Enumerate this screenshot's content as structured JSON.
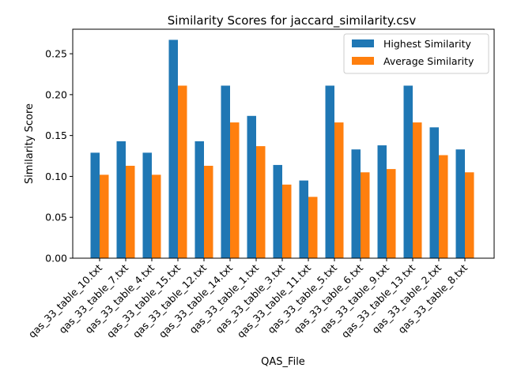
{
  "chart_data": {
    "type": "bar",
    "title": "Similarity Scores for jaccard_similarity.csv",
    "xlabel": "QAS_File",
    "ylabel": "Similarity Score",
    "ylim": [
      0,
      0.28
    ],
    "yticks": [
      "0.00",
      "0.05",
      "0.10",
      "0.15",
      "0.20",
      "0.25"
    ],
    "grid": false,
    "legend_position": "top-right",
    "categories": [
      "qas_33_table_10.txt",
      "qas_33_table_7.txt",
      "qas_33_table_4.txt",
      "qas_33_table_15.txt",
      "qas_33_table_12.txt",
      "qas_33_table_14.txt",
      "qas_33_table_1.txt",
      "qas_33_table_3.txt",
      "qas_33_table_11.txt",
      "qas_33_table_5.txt",
      "qas_33_table_6.txt",
      "qas_33_table_9.txt",
      "qas_33_table_13.txt",
      "qas_33_table_2.txt",
      "qas_33_table_8.txt"
    ],
    "series": [
      {
        "name": "Highest Similarity",
        "color": "#1f77b4",
        "values": [
          0.129,
          0.143,
          0.129,
          0.267,
          0.143,
          0.211,
          0.174,
          0.114,
          0.095,
          0.211,
          0.133,
          0.138,
          0.211,
          0.16,
          0.133
        ]
      },
      {
        "name": "Average Similarity",
        "color": "#ff7f0e",
        "values": [
          0.102,
          0.113,
          0.102,
          0.211,
          0.113,
          0.166,
          0.137,
          0.09,
          0.075,
          0.166,
          0.105,
          0.109,
          0.166,
          0.126,
          0.105
        ]
      }
    ]
  }
}
